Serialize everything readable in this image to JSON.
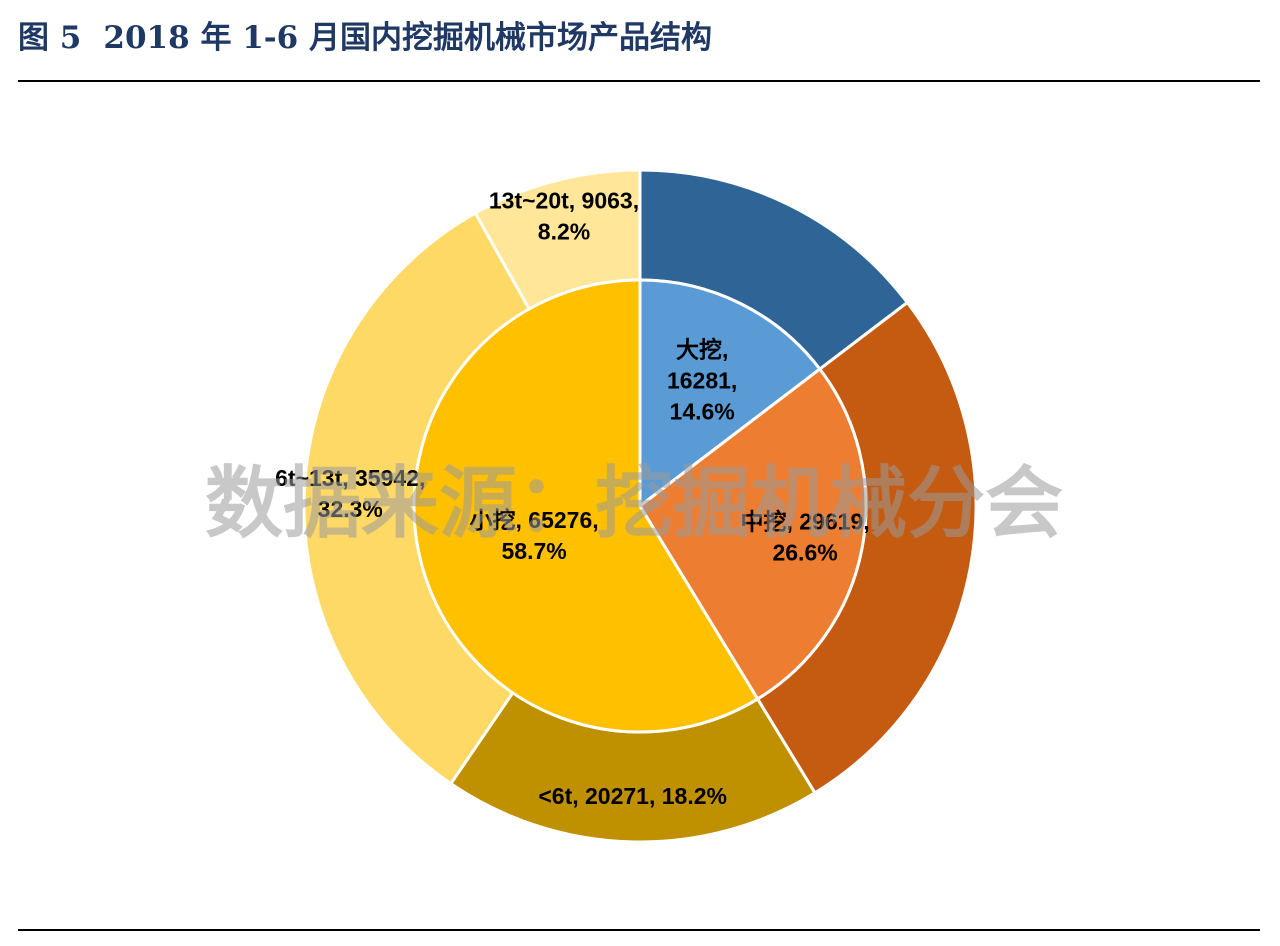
{
  "title": {
    "figure_no": "图 5",
    "text": "2018 年 1-6 月国内挖掘机械市场产品结构"
  },
  "watermark": "数据来源：挖掘机械分会",
  "chart_data": {
    "type": "pie",
    "subtype": "nested-donut",
    "inner": [
      {
        "name": "大挖",
        "value": 16281,
        "percent": "14.6%",
        "color": "#5b9bd5",
        "label_lines": [
          "大挖,",
          "16281,",
          "14.6%"
        ]
      },
      {
        "name": "中挖",
        "value": 29619,
        "percent": "26.6%",
        "color": "#ed7d31",
        "label_lines": [
          "中挖, 29619,",
          "26.6%"
        ]
      },
      {
        "name": "小挖",
        "value": 65276,
        "percent": "58.7%",
        "color": "#ffc000",
        "label_lines": [
          "小挖, 65276,",
          "58.7%"
        ]
      }
    ],
    "outer": [
      {
        "name": "大挖",
        "value": 16281,
        "color": "#2e6596",
        "label_lines": []
      },
      {
        "name": "中挖",
        "value": 29619,
        "color": "#c55a11",
        "label_lines": []
      },
      {
        "name": "<6t",
        "value": 20271,
        "percent": "18.2%",
        "color": "#bf9000",
        "label_lines": [
          "<6t, 20271, 18.2%"
        ]
      },
      {
        "name": "6t~13t",
        "value": 35942,
        "percent": "32.3%",
        "color": "#ffd966",
        "label_lines": [
          "6t~13t, 35942,",
          "32.3%"
        ]
      },
      {
        "name": "13t~20t",
        "value": 9063,
        "percent": "8.2%",
        "color": "#ffe699",
        "label_lines": [
          "13t~20t, 9063,",
          "8.2%"
        ]
      }
    ]
  }
}
